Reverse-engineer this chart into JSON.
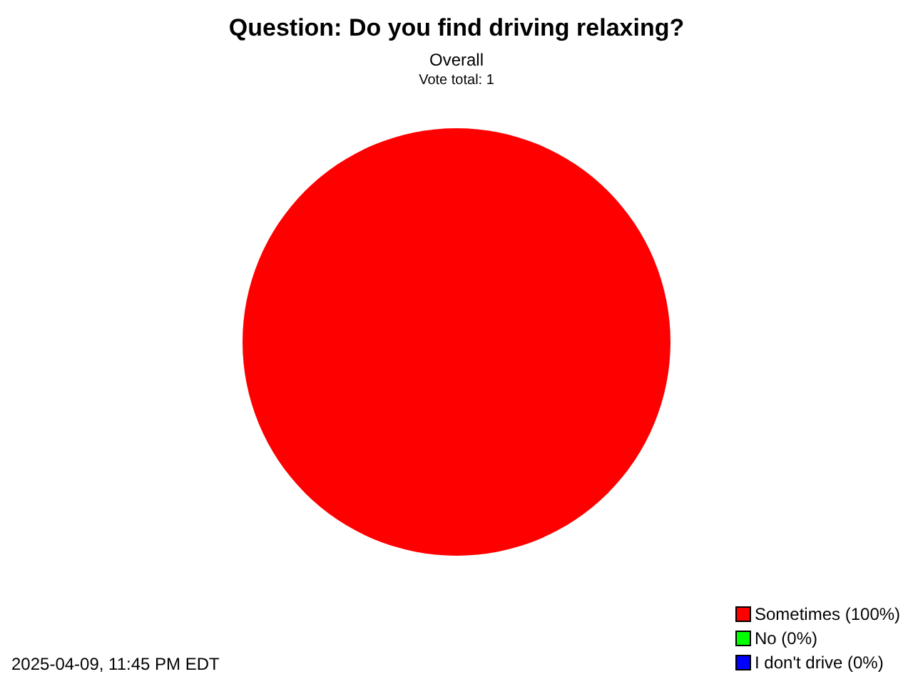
{
  "chart_data": {
    "type": "pie",
    "title": "Question: Do you find driving relaxing?",
    "subtitle": "Overall",
    "annotations": [
      "Vote total: 1",
      "2025-04-09, 11:45 PM EDT"
    ],
    "categories": [
      "Sometimes (100%)",
      "No (0%)",
      "I don't drive (0%)"
    ],
    "values": [
      100,
      0,
      0
    ],
    "colors": [
      "#ff0000",
      "#00ff00",
      "#0000ff"
    ],
    "legend": "bottom right"
  }
}
